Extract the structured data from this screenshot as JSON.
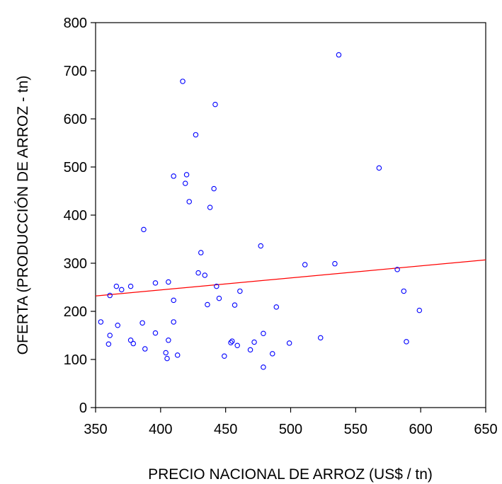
{
  "chart_data": {
    "type": "scatter",
    "title": "",
    "xlabel": "PRECIO NACIONAL DE ARROZ (US$ / tn)",
    "ylabel": "OFERTA (PRODUCCIÓN DE ARROZ - tn)",
    "xlim": [
      350,
      650
    ],
    "ylim": [
      0,
      800
    ],
    "xticks": [
      "350",
      "400",
      "450",
      "500",
      "550",
      "600",
      "650"
    ],
    "yticks": [
      "0",
      "100",
      "200",
      "300",
      "400",
      "500",
      "600",
      "700",
      "800"
    ],
    "grid": false,
    "legend": "none",
    "colors": {
      "points": "#0000ff",
      "trendline": "#ff0000",
      "axes": "#000000"
    },
    "points": [
      {
        "x": 354,
        "y": 178
      },
      {
        "x": 360,
        "y": 132
      },
      {
        "x": 361,
        "y": 150
      },
      {
        "x": 361,
        "y": 233
      },
      {
        "x": 366,
        "y": 252
      },
      {
        "x": 367,
        "y": 171
      },
      {
        "x": 370,
        "y": 245
      },
      {
        "x": 377,
        "y": 252
      },
      {
        "x": 377,
        "y": 140
      },
      {
        "x": 379,
        "y": 133
      },
      {
        "x": 386,
        "y": 176
      },
      {
        "x": 387,
        "y": 370
      },
      {
        "x": 388,
        "y": 122
      },
      {
        "x": 396,
        "y": 155
      },
      {
        "x": 396,
        "y": 259
      },
      {
        "x": 404,
        "y": 114
      },
      {
        "x": 405,
        "y": 102
      },
      {
        "x": 406,
        "y": 140
      },
      {
        "x": 406,
        "y": 261
      },
      {
        "x": 410,
        "y": 223
      },
      {
        "x": 410,
        "y": 178
      },
      {
        "x": 410,
        "y": 481
      },
      {
        "x": 413,
        "y": 109
      },
      {
        "x": 417,
        "y": 678
      },
      {
        "x": 419,
        "y": 466
      },
      {
        "x": 420,
        "y": 484
      },
      {
        "x": 422,
        "y": 428
      },
      {
        "x": 427,
        "y": 567
      },
      {
        "x": 429,
        "y": 280
      },
      {
        "x": 431,
        "y": 322
      },
      {
        "x": 434,
        "y": 275
      },
      {
        "x": 436,
        "y": 214
      },
      {
        "x": 438,
        "y": 416
      },
      {
        "x": 441,
        "y": 455
      },
      {
        "x": 442,
        "y": 630
      },
      {
        "x": 443,
        "y": 252
      },
      {
        "x": 445,
        "y": 227
      },
      {
        "x": 449,
        "y": 107
      },
      {
        "x": 454,
        "y": 135
      },
      {
        "x": 455,
        "y": 138
      },
      {
        "x": 457,
        "y": 213
      },
      {
        "x": 459,
        "y": 129
      },
      {
        "x": 461,
        "y": 242
      },
      {
        "x": 469,
        "y": 120
      },
      {
        "x": 472,
        "y": 136
      },
      {
        "x": 477,
        "y": 336
      },
      {
        "x": 479,
        "y": 154
      },
      {
        "x": 479,
        "y": 84
      },
      {
        "x": 486,
        "y": 112
      },
      {
        "x": 489,
        "y": 209
      },
      {
        "x": 499,
        "y": 134
      },
      {
        "x": 511,
        "y": 297
      },
      {
        "x": 523,
        "y": 145
      },
      {
        "x": 534,
        "y": 299
      },
      {
        "x": 537,
        "y": 733
      },
      {
        "x": 568,
        "y": 498
      },
      {
        "x": 582,
        "y": 287
      },
      {
        "x": 587,
        "y": 242
      },
      {
        "x": 589,
        "y": 137
      },
      {
        "x": 599,
        "y": 202
      }
    ],
    "trendline": {
      "x": [
        350,
        650
      ],
      "y": [
        232,
        307
      ]
    }
  }
}
